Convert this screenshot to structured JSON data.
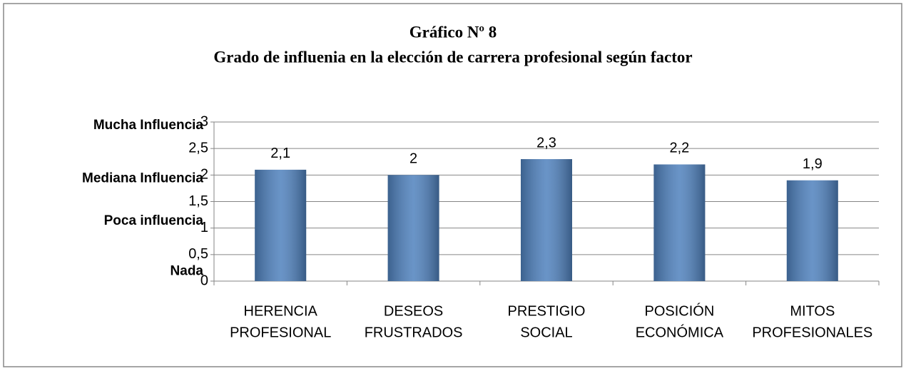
{
  "chart_data": {
    "type": "bar",
    "title": [
      "Gráfico Nº 8",
      "Grado de influenia en la elección de carrera profesional según factor"
    ],
    "categories": [
      [
        "HERENCIA",
        "PROFESIONAL"
      ],
      [
        "DESEOS",
        "FRUSTRADOS"
      ],
      [
        "PRESTIGIO",
        "SOCIAL"
      ],
      [
        "POSICIÓN",
        "ECONÓMICA"
      ],
      [
        "MITOS",
        "PROFESIONALES"
      ]
    ],
    "values": [
      2.1,
      2,
      2.3,
      2.2,
      1.9
    ],
    "value_labels": [
      "2,1",
      "2",
      "2,3",
      "2,2",
      "1,9"
    ],
    "color": "#4f81bd",
    "ylim": [
      0,
      3
    ],
    "yticks": [
      0,
      {
        "value": 0.5,
        "label": "0,5"
      },
      1,
      {
        "value": 1.5,
        "label": "1,5"
      },
      2,
      {
        "value": 2.5,
        "label": "2,5"
      },
      3
    ],
    "y_category_labels": [
      {
        "value": 3,
        "label": "Mucha Influencia"
      },
      {
        "value": 2,
        "label": "Mediana Influencia"
      },
      {
        "value": 1.2,
        "label": "Poca influencia"
      },
      {
        "value": 0.25,
        "label": "Nada"
      }
    ],
    "grid": true
  }
}
